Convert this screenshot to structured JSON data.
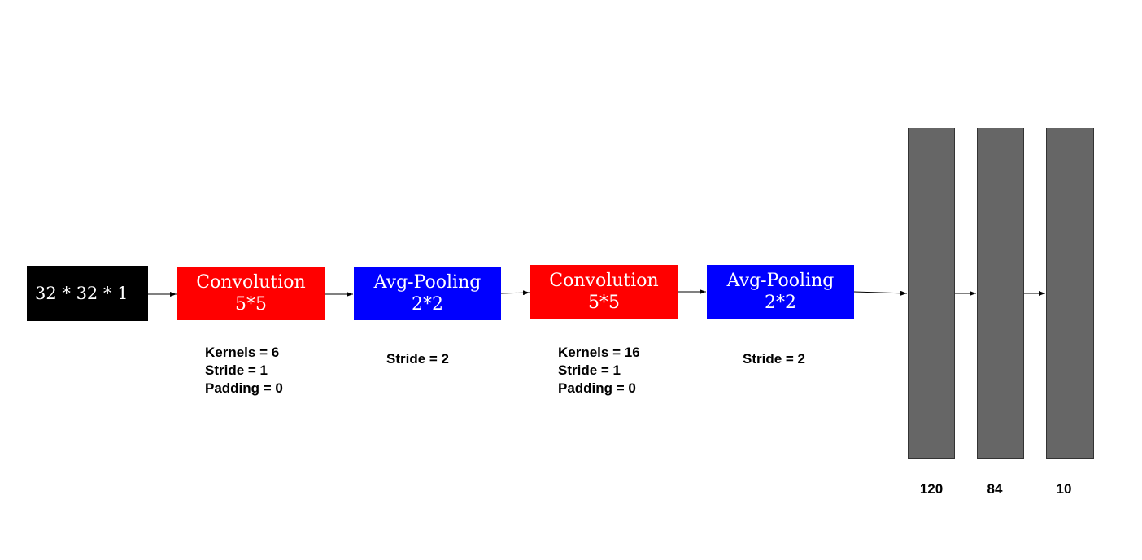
{
  "input": {
    "label": "32 * 32 * 1"
  },
  "layers": [
    {
      "type": "conv",
      "title": "Convolution",
      "size": "5*5",
      "params": [
        "Kernels = 6",
        "Stride = 1",
        "Padding = 0"
      ]
    },
    {
      "type": "pool",
      "title": "Avg-Pooling",
      "size": "2*2",
      "params": [
        "Stride = 2"
      ]
    },
    {
      "type": "conv",
      "title": "Convolution",
      "size": "5*5",
      "params": [
        "Kernels = 16",
        "Stride = 1",
        "Padding = 0"
      ]
    },
    {
      "type": "pool",
      "title": "Avg-Pooling",
      "size": "2*2",
      "params": [
        "Stride = 2"
      ]
    }
  ],
  "fully_connected": [
    {
      "units": "120"
    },
    {
      "units": "84"
    },
    {
      "units": "10"
    }
  ],
  "colors": {
    "input": "#000000",
    "convolution": "#ff0000",
    "pooling": "#0000ff",
    "fully_connected": "#666666",
    "arrow": "#000000"
  }
}
